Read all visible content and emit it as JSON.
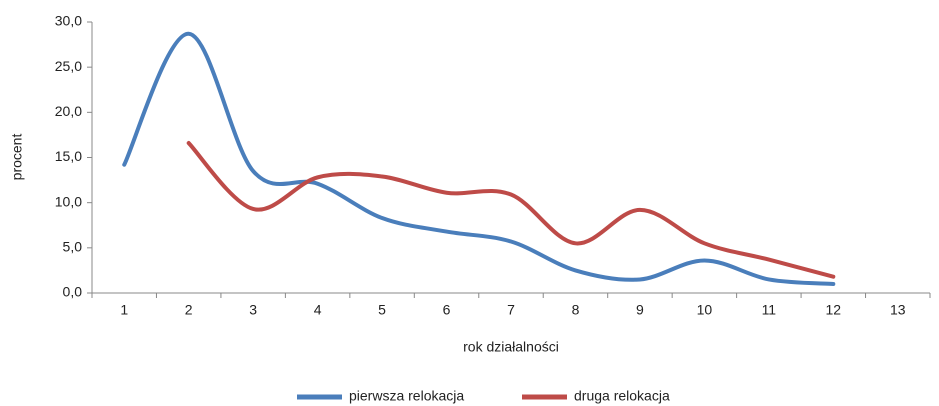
{
  "chart_data": {
    "type": "line",
    "x_label": "rok działalności",
    "y_label": "procent",
    "categories": [
      "1",
      "2",
      "3",
      "4",
      "5",
      "6",
      "7",
      "8",
      "9",
      "10",
      "11",
      "12",
      "13"
    ],
    "series": [
      {
        "name": "pierwsza relokacja",
        "color": "#4a7ebb",
        "values": [
          14.2,
          28.7,
          13.5,
          12.1,
          8.3,
          6.8,
          5.7,
          2.5,
          1.5,
          3.6,
          1.5,
          1.0,
          null
        ]
      },
      {
        "name": "druga relokacja",
        "color": "#be4b48",
        "values": [
          null,
          16.6,
          9.3,
          12.8,
          12.9,
          11.1,
          10.9,
          5.5,
          9.2,
          5.5,
          3.7,
          1.8,
          null
        ]
      }
    ],
    "ylim": [
      0,
      30
    ],
    "yticks": [
      {
        "value": 0,
        "label": "0,0"
      },
      {
        "value": 5,
        "label": "5,0"
      },
      {
        "value": 10,
        "label": "10,0"
      },
      {
        "value": 15,
        "label": "15,0"
      },
      {
        "value": 20,
        "label": "20,0"
      },
      {
        "value": 25,
        "label": "25,0"
      },
      {
        "value": 30,
        "label": "30,0"
      }
    ],
    "grid": false,
    "legend": "bottom"
  }
}
